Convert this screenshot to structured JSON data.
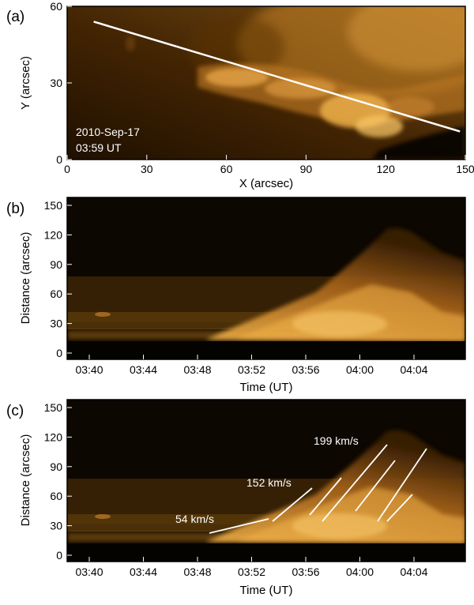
{
  "colors": {
    "hot": "#f3b34a",
    "dark": "#0f0800",
    "frame": "#000000",
    "line": "#ffffff"
  },
  "chart_data": [
    {
      "panel": "(a)",
      "type": "heatmap",
      "xlabel": "X (arcsec)",
      "ylabel": "Y (arcsec)",
      "xlim": [
        0,
        150
      ],
      "ylim": [
        0,
        60
      ],
      "xticks": [
        0,
        30,
        60,
        90,
        120,
        150
      ],
      "yticks": [
        0,
        30,
        60
      ],
      "annotations": [
        "2010-Sep-17",
        "03:59 UT"
      ],
      "slit": {
        "x": [
          10,
          148
        ],
        "y": [
          54,
          11
        ]
      }
    },
    {
      "panel": "(b)",
      "type": "heatmap",
      "xlabel": "Time (UT)",
      "ylabel": "Distance (arcsec)",
      "ylim": [
        0,
        155
      ],
      "xticks": [
        "03:40",
        "03:44",
        "03:48",
        "03:52",
        "03:56",
        "04:00",
        "04:04"
      ],
      "yticks": [
        0,
        30,
        60,
        90,
        120,
        150
      ]
    },
    {
      "panel": "(c)",
      "type": "heatmap",
      "xlabel": "Time (UT)",
      "ylabel": "Distance (arcsec)",
      "ylim": [
        0,
        155
      ],
      "xticks": [
        "03:40",
        "03:44",
        "03:48",
        "03:52",
        "03:56",
        "04:00",
        "04:04"
      ],
      "yticks": [
        0,
        30,
        60,
        90,
        120,
        150
      ],
      "speed_labels": [
        "54 km/s",
        "152 km/s",
        "199 km/s"
      ]
    }
  ]
}
